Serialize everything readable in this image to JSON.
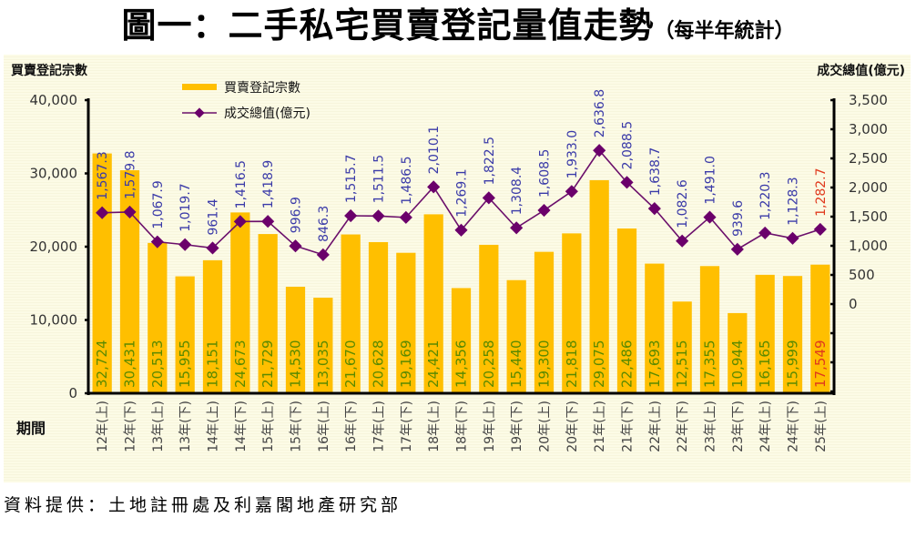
{
  "title": {
    "main": "圖一：二手私宅買賣登記量值走勢",
    "sub": "（每半年統計）"
  },
  "source": "資料提供：土地註冊處及利嘉閣地產研究部",
  "colors": {
    "bar": "#ffbf00",
    "line": "#6b0f6b",
    "marker": "#6b006b",
    "bar_label": "#5a8a00",
    "line_label": "#3a3aa8",
    "highlight_label": "#e03a1e",
    "axis": "#000000"
  },
  "chart_data": {
    "type": "bar",
    "title": "圖一：二手私宅買賣登記量值走勢（每半年統計）",
    "xlabel": "期間",
    "ylabel": "買賣登記宗數",
    "y2label": "成交總值(億元)",
    "ylim": [
      0,
      40000
    ],
    "yticks": [
      "40,000",
      "30,000",
      "20,000",
      "10,000",
      "0"
    ],
    "yticks_values": [
      40000,
      30000,
      20000,
      10000,
      0
    ],
    "y2lim": [
      0,
      3500
    ],
    "y2ticks": [
      "3,500",
      "3,000",
      "2,500",
      "2,000",
      "1,500",
      "1,000",
      "500",
      "0"
    ],
    "y2ticks_values": [
      3500,
      3000,
      2500,
      2000,
      1500,
      1000,
      500,
      0
    ],
    "legend": [
      "買賣登記宗數",
      "成交總值(億元)"
    ],
    "legend_position": "top-left",
    "grid": false,
    "categories": [
      "12年(上)",
      "12年(下)",
      "13年(上)",
      "13年(下)",
      "14年(上)",
      "14年(下)",
      "15年(上)",
      "15年(下)",
      "16年(上)",
      "16年(下)",
      "17年(上)",
      "17年(下)",
      "18年(上)",
      "18年(下)",
      "19年(上)",
      "19年(下)",
      "20年(上)",
      "20年(下)",
      "21年(上)",
      "21年(下)",
      "22年(上)",
      "22年(下)",
      "23年(上)",
      "23年(下)",
      "24年(上)",
      "24年(下)",
      "25年(上)"
    ],
    "series": [
      {
        "name": "買賣登記宗數",
        "type": "bar",
        "axis": "left",
        "values": [
          32724,
          30431,
          20513,
          15955,
          18151,
          24673,
          21729,
          14530,
          13035,
          21670,
          20628,
          19169,
          24421,
          14356,
          20258,
          15440,
          19300,
          21818,
          29075,
          22486,
          17693,
          12515,
          17355,
          10944,
          16165,
          15999,
          17549
        ],
        "labels": [
          "32,724",
          "30,431",
          "20,513",
          "15,955",
          "18,151",
          "24,673",
          "21,729",
          "14,530",
          "13,035",
          "21,670",
          "20,628",
          "19,169",
          "24,421",
          "14,356",
          "20,258",
          "15,440",
          "19,300",
          "21,818",
          "29,075",
          "22,486",
          "17,693",
          "12,515",
          "17,355",
          "10,944",
          "16,165",
          "15,999",
          "17,549"
        ]
      },
      {
        "name": "成交總值(億元)",
        "type": "line",
        "axis": "right",
        "values": [
          1567.3,
          1579.8,
          1067.9,
          1019.7,
          961.4,
          1416.5,
          1418.9,
          996.9,
          846.3,
          1515.7,
          1511.5,
          1486.5,
          2010.1,
          1269.1,
          1822.5,
          1308.4,
          1608.5,
          1933.0,
          2636.8,
          2088.5,
          1638.7,
          1082.6,
          1491.0,
          939.6,
          1220.3,
          1128.3,
          1282.7
        ],
        "labels": [
          "1,567.3",
          "1,579.8",
          "1,067.9",
          "1,019.7",
          "961.4",
          "1,416.5",
          "1,418.9",
          "996.9",
          "846.3",
          "1,515.7",
          "1,511.5",
          "1,486.5",
          "2,010.1",
          "1,269.1",
          "1,822.5",
          "1,308.4",
          "1,608.5",
          "1,933.0",
          "2,636.8",
          "2,088.5",
          "1,638.7",
          "1,082.6",
          "1,491.0",
          "939.6",
          "1,220.3",
          "1,128.3",
          "1,282.7"
        ]
      }
    ],
    "highlight_index": 26
  }
}
